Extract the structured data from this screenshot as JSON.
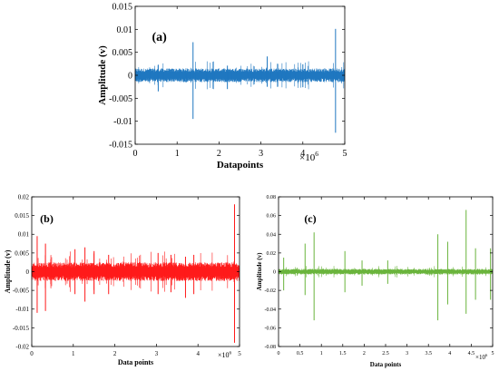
{
  "chart_data": [
    {
      "type": "line",
      "panel_label": "(a)",
      "xlabel": "Datapoints",
      "ylabel": "Amplitude (v)",
      "x_multiplier": "×10",
      "x_multiplier_exp": "6",
      "xlim": [
        0,
        5
      ],
      "ylim": [
        -0.015,
        0.015
      ],
      "xticks": [
        "0",
        "1",
        "2",
        "3",
        "4",
        "5"
      ],
      "yticks": [
        "-0.015",
        "-0.01",
        "-0.005",
        "0",
        "0.005",
        "0.01",
        "0.015"
      ],
      "color": "#1f77c0",
      "noise_band": [
        -0.0015,
        0.0015
      ],
      "spikes": [
        {
          "x": 1.38,
          "min": -0.0095,
          "max": 0.0072
        },
        {
          "x": 3.15,
          "min": -0.0025,
          "max": 0.0041
        },
        {
          "x": 4.78,
          "min": -0.0125,
          "max": 0.0101
        },
        {
          "x": 0.55,
          "min": -0.0035,
          "max": 0.0023
        },
        {
          "x": 2.2,
          "min": -0.003,
          "max": 0.0021
        },
        {
          "x": 4.0,
          "min": -0.0026,
          "max": 0.0024
        }
      ]
    },
    {
      "type": "line",
      "panel_label": "(b)",
      "xlabel": "Data points",
      "ylabel": "Amplitude (v)",
      "x_multiplier": "×10",
      "x_multiplier_exp": "6",
      "xlim": [
        0,
        5
      ],
      "ylim": [
        -0.02,
        0.02
      ],
      "xticks": [
        "0",
        "1",
        "2",
        "3",
        "4",
        "5"
      ],
      "yticks": [
        "-0.02",
        "-0.015",
        "-0.01",
        "-0.005",
        "0",
        "0.005",
        "0.01",
        "0.015",
        "0.02"
      ],
      "color": "#ff1a1a",
      "noise_band": [
        -0.0025,
        0.0025
      ],
      "spikes": [
        {
          "x": 0.13,
          "min": -0.011,
          "max": 0.0095
        },
        {
          "x": 0.33,
          "min": -0.0105,
          "max": 0.0075
        },
        {
          "x": 1.04,
          "min": -0.006,
          "max": 0.006
        },
        {
          "x": 1.28,
          "min": -0.008,
          "max": 0.0065
        },
        {
          "x": 1.5,
          "min": -0.006,
          "max": 0.0055
        },
        {
          "x": 1.85,
          "min": -0.006,
          "max": 0.0045
        },
        {
          "x": 3.04,
          "min": -0.006,
          "max": 0.005
        },
        {
          "x": 3.35,
          "min": -0.0055,
          "max": 0.0045
        },
        {
          "x": 3.7,
          "min": -0.007,
          "max": 0.004
        },
        {
          "x": 3.9,
          "min": -0.006,
          "max": 0.0045
        },
        {
          "x": 4.88,
          "min": -0.019,
          "max": 0.018
        }
      ]
    },
    {
      "type": "line",
      "panel_label": "(c)",
      "xlabel": "Data points",
      "ylabel": "Amplitude (v)",
      "x_multiplier": "×10",
      "x_multiplier_exp": "6",
      "xlim": [
        0,
        5
      ],
      "ylim": [
        -0.08,
        0.08
      ],
      "xticks": [
        "0",
        "0.5",
        "1",
        "1.5",
        "2",
        "2.5",
        "3",
        "3.5",
        "4",
        "4.5",
        "5"
      ],
      "yticks": [
        "-0.08",
        "-0.06",
        "-0.04",
        "-0.02",
        "0",
        "0.02",
        "0.04",
        "0.06",
        "0.08"
      ],
      "color": "#6ab43c",
      "noise_band": [
        -0.003,
        0.003
      ],
      "spikes": [
        {
          "x": 0.12,
          "min": -0.02,
          "max": 0.015
        },
        {
          "x": 0.62,
          "min": -0.025,
          "max": 0.03
        },
        {
          "x": 0.83,
          "min": -0.052,
          "max": 0.042
        },
        {
          "x": 1.55,
          "min": -0.022,
          "max": 0.022
        },
        {
          "x": 1.95,
          "min": -0.015,
          "max": 0.012
        },
        {
          "x": 2.55,
          "min": -0.013,
          "max": 0.012
        },
        {
          "x": 3.72,
          "min": -0.052,
          "max": 0.04
        },
        {
          "x": 3.95,
          "min": -0.035,
          "max": 0.032
        },
        {
          "x": 4.38,
          "min": -0.045,
          "max": 0.066
        },
        {
          "x": 4.6,
          "min": -0.03,
          "max": 0.025
        },
        {
          "x": 4.95,
          "min": -0.03,
          "max": 0.025
        }
      ]
    }
  ]
}
